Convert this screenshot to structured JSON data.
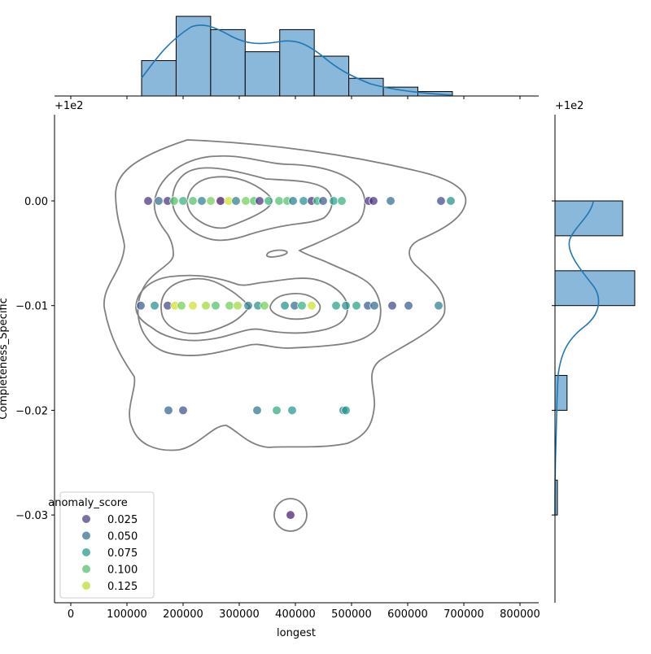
{
  "chart_data": {
    "type": "scatter",
    "subtype": "jointplot with KDE contours and marginal histograms",
    "xlabel": "longest",
    "ylabel": "Completeness_Specific",
    "x_offset_label": "+1e2",
    "y_offset_label": "+1e2",
    "xlim": [
      -29000,
      833000
    ],
    "ylim": [
      -0.0384,
      0.0082
    ],
    "x_ticks": [
      "0",
      "100000",
      "200000",
      "300000",
      "400000",
      "500000",
      "600000",
      "700000",
      "800000"
    ],
    "x_tick_values": [
      0,
      100000,
      200000,
      300000,
      400000,
      500000,
      600000,
      700000,
      800000
    ],
    "y_ticks": [
      "0.00",
      "−0.01",
      "−0.02",
      "−0.03"
    ],
    "y_tick_values": [
      0,
      -0.01,
      -0.02,
      -0.03
    ],
    "grid": false,
    "hue": {
      "name": "anomaly_score",
      "colormap": "viridis",
      "range": [
        0,
        0.14
      ],
      "legend_title": "anomaly_score",
      "legend_entries": [
        "0.025",
        "0.050",
        "0.075",
        "0.100",
        "0.125"
      ],
      "legend_values": [
        0.025,
        0.05,
        0.075,
        0.1,
        0.125
      ],
      "legend_placement": "lower-left"
    },
    "points": [
      [
        137700,
        0,
        0.02
      ],
      [
        156500,
        0,
        0.05
      ],
      [
        172500,
        0,
        0.02
      ],
      [
        184000,
        0,
        0.1
      ],
      [
        200000,
        0,
        0.09
      ],
      [
        217400,
        0,
        0.1
      ],
      [
        233300,
        0,
        0.06
      ],
      [
        249300,
        0,
        0.11
      ],
      [
        266700,
        0,
        0.005
      ],
      [
        281200,
        0,
        0.13
      ],
      [
        294200,
        0,
        0.06
      ],
      [
        311600,
        0,
        0.11
      ],
      [
        326100,
        0,
        0.1
      ],
      [
        336200,
        0,
        0.02
      ],
      [
        352200,
        0,
        0.09
      ],
      [
        371000,
        0,
        0.1
      ],
      [
        385500,
        0,
        0.1
      ],
      [
        395700,
        0,
        0.06
      ],
      [
        414500,
        0,
        0.07
      ],
      [
        429000,
        0,
        0.02
      ],
      [
        439100,
        0,
        0.09
      ],
      [
        449300,
        0,
        0.04
      ],
      [
        468100,
        0,
        0.08
      ],
      [
        482600,
        0,
        0.09
      ],
      [
        530400,
        0,
        0.02
      ],
      [
        539100,
        0,
        0.02
      ],
      [
        569600,
        0,
        0.05
      ],
      [
        659400,
        0,
        0.03
      ],
      [
        676800,
        0,
        0.07
      ],
      [
        124600,
        -0.01,
        0.04
      ],
      [
        149300,
        -0.01,
        0.07
      ],
      [
        172500,
        -0.01,
        0.03
      ],
      [
        185500,
        -0.01,
        0.13
      ],
      [
        197100,
        -0.01,
        0.11
      ],
      [
        217400,
        -0.01,
        0.13
      ],
      [
        240600,
        -0.01,
        0.12
      ],
      [
        258000,
        -0.01,
        0.1
      ],
      [
        282600,
        -0.01,
        0.11
      ],
      [
        297100,
        -0.01,
        0.12
      ],
      [
        316000,
        -0.01,
        0.06
      ],
      [
        333300,
        -0.01,
        0.07
      ],
      [
        344900,
        -0.01,
        0.11
      ],
      [
        381200,
        -0.01,
        0.07
      ],
      [
        398600,
        -0.01,
        0.05
      ],
      [
        411600,
        -0.01,
        0.09
      ],
      [
        429000,
        -0.01,
        0.13
      ],
      [
        472500,
        -0.01,
        0.08
      ],
      [
        489900,
        -0.01,
        0.07
      ],
      [
        508700,
        -0.01,
        0.08
      ],
      [
        529000,
        -0.01,
        0.04
      ],
      [
        540600,
        -0.01,
        0.05
      ],
      [
        572500,
        -0.01,
        0.03
      ],
      [
        601500,
        -0.01,
        0.04
      ],
      [
        655100,
        -0.01,
        0.06
      ],
      [
        173900,
        -0.02,
        0.045
      ],
      [
        200000,
        -0.02,
        0.035
      ],
      [
        331900,
        -0.02,
        0.055
      ],
      [
        366700,
        -0.02,
        0.085
      ],
      [
        394200,
        -0.02,
        0.075
      ],
      [
        485500,
        -0.02,
        0.06
      ],
      [
        489900,
        -0.02,
        0.075
      ],
      [
        391300,
        -0.03,
        0.01
      ]
    ],
    "x_marginal_histogram": {
      "bin_edges": [
        126100,
        187600,
        249100,
        310600,
        372100,
        433600,
        495100,
        556600,
        618100,
        679600
      ],
      "counts": [
        8,
        18,
        15,
        10,
        15,
        9,
        4,
        2,
        1
      ],
      "kde": true
    },
    "y_marginal_histogram": {
      "bins": [
        [
          -0.00333,
          0
        ],
        [
          -0.01,
          -0.00667
        ],
        [
          -0.02,
          -0.01667
        ],
        [
          -0.03,
          -0.02667
        ]
      ],
      "counts": [
        28,
        33,
        5,
        1
      ],
      "kde": true
    },
    "colors": {
      "histogram_fill": "#8ab8da",
      "kde_line": "#1f77b4",
      "contour": "#808080"
    }
  }
}
